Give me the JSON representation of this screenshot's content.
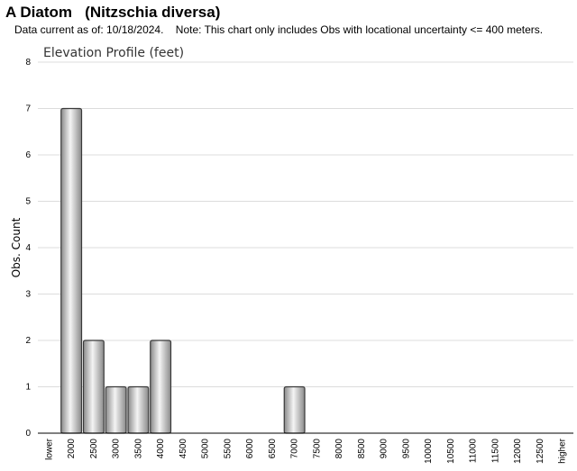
{
  "header": {
    "title": "A Diatom   (Nitzschia diversa)",
    "subtitle": "Data current as of: 10/18/2024.    Note: This chart only includes Obs with locational uncertainty <= 400 meters."
  },
  "chart_data": {
    "type": "bar",
    "title": "Elevation Profile (feet)",
    "xlabel": "",
    "ylabel": "Obs. Count",
    "categories": [
      "lower",
      "2000",
      "2500",
      "3000",
      "3500",
      "4000",
      "4500",
      "5000",
      "5500",
      "6000",
      "6500",
      "7000",
      "7500",
      "8000",
      "8500",
      "9000",
      "9500",
      "10000",
      "10500",
      "11000",
      "11500",
      "12000",
      "12500",
      "higher"
    ],
    "values": [
      0,
      7,
      2,
      1,
      1,
      2,
      0,
      0,
      0,
      0,
      0,
      1,
      0,
      0,
      0,
      0,
      0,
      0,
      0,
      0,
      0,
      0,
      0,
      0
    ],
    "ylim": [
      0,
      8
    ],
    "yticks": [
      0,
      1,
      2,
      3,
      4,
      5,
      6,
      7,
      8
    ],
    "grid": true,
    "legend": "none",
    "colors": {
      "bar_dark": "#8a8a8a",
      "bar_light": "#f4f4f4",
      "bar_stroke": "#3a3a3a",
      "grid": "#dcdcdc",
      "axis": "#000000"
    }
  }
}
